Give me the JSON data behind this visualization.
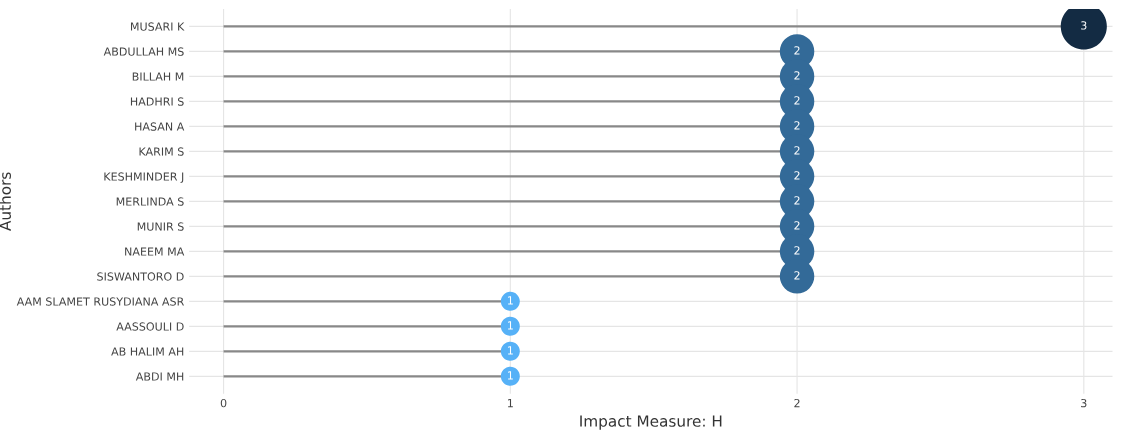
{
  "chart_data": {
    "type": "lollipop",
    "orientation": "horizontal",
    "xlabel": "Impact Measure: H",
    "ylabel": "Authors",
    "categories": [
      "MUSARI K",
      "ABDULLAH MS",
      "BILLAH M",
      "HADHRI S",
      "HASAN A",
      "KARIM S",
      "KESHMINDER J",
      "MERLINDA S",
      "MUNIR S",
      "NAEEM MA",
      "SISWANTORO D",
      "AAM SLAMET RUSYDIANA ASR",
      "AASSOULI D",
      "AB HALIM AH",
      "ABDI MH"
    ],
    "values": [
      3,
      2,
      2,
      2,
      2,
      2,
      2,
      2,
      2,
      2,
      2,
      1,
      1,
      1,
      1
    ],
    "colors": [
      "#132b43",
      "#336a98",
      "#336a98",
      "#336a98",
      "#336a98",
      "#336a98",
      "#336a98",
      "#336a98",
      "#336a98",
      "#336a98",
      "#336a98",
      "#56b1f7",
      "#56b1f7",
      "#56b1f7",
      "#56b1f7"
    ],
    "sizes": [
      1,
      0.56,
      0.56,
      0.56,
      0.56,
      0.56,
      0.56,
      0.56,
      0.56,
      0.56,
      0.56,
      0.17,
      0.17,
      0.17,
      0.17
    ],
    "xlim": [
      -0.12,
      3.1
    ],
    "xticks": [
      0,
      1,
      2,
      3
    ],
    "grid": true,
    "data_labels": true
  }
}
